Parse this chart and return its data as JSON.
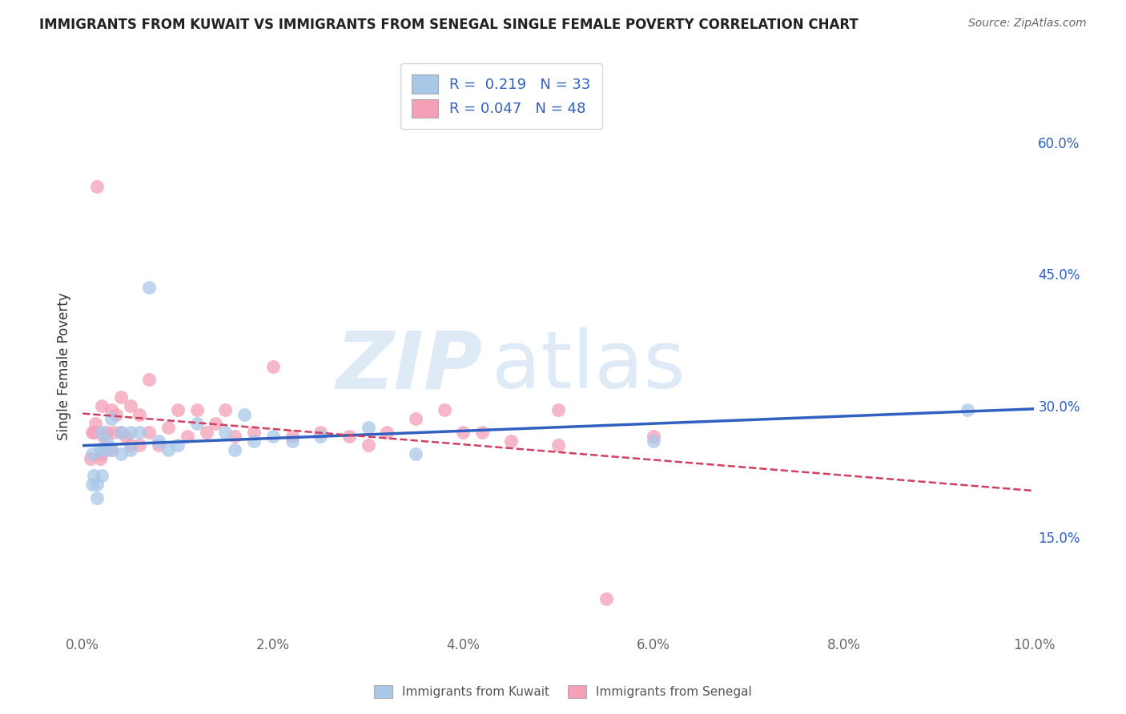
{
  "title": "IMMIGRANTS FROM KUWAIT VS IMMIGRANTS FROM SENEGAL SINGLE FEMALE POVERTY CORRELATION CHART",
  "source": "Source: ZipAtlas.com",
  "ylabel": "Single Female Poverty",
  "x_label_kuwait": "Immigrants from Kuwait",
  "x_label_senegal": "Immigrants from Senegal",
  "xlim": [
    0.0,
    0.1
  ],
  "ylim": [
    0.04,
    0.65
  ],
  "xticks": [
    0.0,
    0.02,
    0.04,
    0.06,
    0.08,
    0.1
  ],
  "xticklabels": [
    "0.0%",
    "2.0%",
    "4.0%",
    "6.0%",
    "8.0%",
    "10.0%"
  ],
  "yticks": [
    0.15,
    0.3,
    0.45,
    0.6
  ],
  "yticklabels": [
    "15.0%",
    "30.0%",
    "45.0%",
    "60.0%"
  ],
  "kuwait_R": 0.219,
  "kuwait_N": 33,
  "senegal_R": 0.047,
  "senegal_N": 48,
  "kuwait_color": "#a8c8e8",
  "senegal_color": "#f4a0b8",
  "kuwait_line_color": "#3060c0",
  "senegal_line_color": "#d04060",
  "background_color": "#ffffff",
  "grid_color": "#cccccc",
  "kuwait_x": [
    0.001,
    0.001,
    0.0012,
    0.0015,
    0.0015,
    0.0018,
    0.002,
    0.002,
    0.0022,
    0.0025,
    0.003,
    0.003,
    0.004,
    0.004,
    0.005,
    0.005,
    0.006,
    0.007,
    0.008,
    0.009,
    0.01,
    0.012,
    0.015,
    0.016,
    0.017,
    0.018,
    0.02,
    0.022,
    0.025,
    0.03,
    0.035,
    0.06,
    0.093
  ],
  "kuwait_y": [
    0.245,
    0.21,
    0.22,
    0.195,
    0.21,
    0.25,
    0.27,
    0.22,
    0.25,
    0.26,
    0.285,
    0.25,
    0.245,
    0.27,
    0.25,
    0.27,
    0.27,
    0.435,
    0.26,
    0.25,
    0.255,
    0.28,
    0.27,
    0.25,
    0.29,
    0.26,
    0.265,
    0.26,
    0.265,
    0.275,
    0.245,
    0.26,
    0.295
  ],
  "senegal_x": [
    0.0008,
    0.001,
    0.0012,
    0.0013,
    0.0015,
    0.0018,
    0.002,
    0.002,
    0.0022,
    0.0025,
    0.003,
    0.003,
    0.0033,
    0.0035,
    0.004,
    0.004,
    0.0045,
    0.005,
    0.005,
    0.006,
    0.006,
    0.007,
    0.007,
    0.008,
    0.009,
    0.01,
    0.011,
    0.012,
    0.013,
    0.014,
    0.015,
    0.016,
    0.018,
    0.02,
    0.022,
    0.025,
    0.028,
    0.03,
    0.032,
    0.035,
    0.038,
    0.04,
    0.045,
    0.05,
    0.055,
    0.06,
    0.042,
    0.05
  ],
  "senegal_y": [
    0.24,
    0.27,
    0.27,
    0.28,
    0.55,
    0.24,
    0.3,
    0.245,
    0.265,
    0.27,
    0.295,
    0.25,
    0.27,
    0.29,
    0.31,
    0.27,
    0.265,
    0.255,
    0.3,
    0.29,
    0.255,
    0.33,
    0.27,
    0.255,
    0.275,
    0.295,
    0.265,
    0.295,
    0.27,
    0.28,
    0.295,
    0.265,
    0.27,
    0.345,
    0.265,
    0.27,
    0.265,
    0.255,
    0.27,
    0.285,
    0.295,
    0.27,
    0.26,
    0.255,
    0.08,
    0.265,
    0.27,
    0.295
  ]
}
